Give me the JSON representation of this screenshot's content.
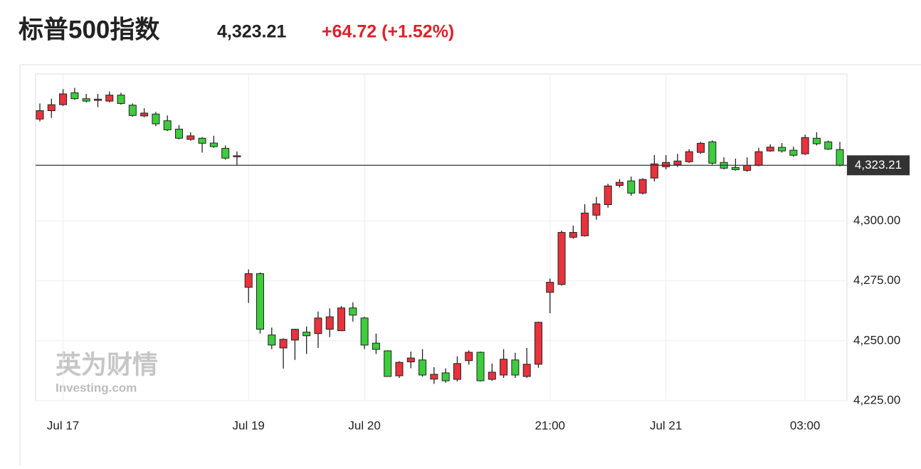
{
  "header": {
    "title": "标普500指数",
    "price": "4,323.21",
    "change": "+64.72 (+1.52%)"
  },
  "chart_data": {
    "type": "candlestick",
    "watermark": [
      "英为财情",
      "Investing.com"
    ],
    "up_color": "#e8323c",
    "down_color": "#3ccc3c",
    "categories": [
      null,
      null,
      "Jul 17",
      null,
      null,
      null,
      null,
      null,
      null,
      null,
      null,
      null,
      null,
      null,
      null,
      null,
      null,
      null,
      "Jul 19",
      null,
      null,
      null,
      null,
      null,
      null,
      null,
      null,
      null,
      "Jul 20",
      null,
      null,
      null,
      null,
      null,
      null,
      null,
      null,
      null,
      null,
      null,
      null,
      null,
      null,
      null,
      "21:00",
      null,
      null,
      null,
      null,
      null,
      null,
      null,
      null,
      null,
      "Jul 21",
      null,
      null,
      null,
      null,
      null,
      null,
      null,
      null,
      null,
      null,
      null,
      "03:00",
      null,
      null,
      null
    ],
    "open": [
      4342.5,
      4346,
      4348.5,
      4353.5,
      4351,
      4350.3,
      4350,
      4352.5,
      4348.3,
      4343.8,
      4344.6,
      4341.8,
      4338.3,
      4334,
      4334.5,
      4332.5,
      4330.3,
      4327,
      4272.3,
      4278,
      4252.4,
      4247,
      4250.3,
      4253.6,
      4253,
      4254.8,
      4254.2,
      4263.7,
      4259.5,
      4249,
      4245.8,
      4235.4,
      4241.2,
      4242,
      4234,
      4236.6,
      4233.9,
      4241.7,
      4245.2,
      4233.9,
      4235.7,
      4242,
      4235.1,
      4240.2,
      4270.2,
      4273.5,
      4293.2,
      4293.8,
      4302.4,
      4306.8,
      4314.8,
      4316.7,
      4311.6,
      4317.9,
      4322.6,
      4323.5,
      4324.7,
      4328.6,
      4333,
      4324.4,
      4322.3,
      4321.1,
      4323.2,
      4329.2,
      4330.7,
      4329.5,
      4328,
      4334.5,
      4333,
      4329.8
    ],
    "high": [
      4349,
      4351,
      4355,
      4355.5,
      4353,
      4353,
      4354,
      4353.5,
      4349,
      4347,
      4345.5,
      4344,
      4340,
      4337,
      4335,
      4335.5,
      4331.5,
      4329,
      4279.8,
      4278.5,
      4255.5,
      4251,
      4255,
      4256,
      4262.2,
      4263.5,
      4264.5,
      4266,
      4260,
      4253,
      4246,
      4241.5,
      4245.5,
      4246.5,
      4239,
      4238.5,
      4243.5,
      4246,
      4245.5,
      4240.5,
      4246.5,
      4245,
      4247,
      4258,
      4276,
      4296,
      4298,
      4307,
      4310,
      4315.5,
      4317.5,
      4318.5,
      4317.8,
      4327.5,
      4327.5,
      4328,
      4330,
      4333,
      4333.6,
      4326.5,
      4326,
      4326.5,
      4330.5,
      4332,
      4332.5,
      4331,
      4336,
      4337,
      4333.5,
      4333
    ],
    "low": [
      4341.5,
      4343,
      4348,
      4350.5,
      4349.5,
      4347.5,
      4349.5,
      4348.5,
      4343.5,
      4343.3,
      4339.5,
      4337.5,
      4334,
      4333.5,
      4328.5,
      4330.5,
      4325.5,
      4323.2,
      4265.8,
      4253,
      4246.5,
      4238.4,
      4242,
      4244.5,
      4247,
      4251.5,
      4254,
      4258,
      4246.5,
      4244.5,
      4235,
      4234.5,
      4238.5,
      4235,
      4232,
      4232.5,
      4233,
      4240,
      4233,
      4233.3,
      4234.5,
      4234.5,
      4234.5,
      4238.7,
      4261.5,
      4273,
      4292.5,
      4293.5,
      4300.5,
      4305.5,
      4314,
      4310.5,
      4311,
      4316.5,
      4321.5,
      4322.5,
      4324.2,
      4328,
      4323.5,
      4321.5,
      4321,
      4320.5,
      4322.8,
      4328.8,
      4328.5,
      4326.8,
      4327.5,
      4331.5,
      4329.6,
      4322.8
    ],
    "close": [
      4346,
      4348.5,
      4353,
      4351,
      4350,
      4350.8,
      4352.5,
      4349,
      4344,
      4345,
      4340.5,
      4338,
      4334.5,
      4335.5,
      4332.4,
      4331,
      4326.2,
      4327.2,
      4278,
      4254.8,
      4248.2,
      4250.6,
      4254.8,
      4252.1,
      4259.5,
      4260,
      4263.7,
      4260.7,
      4248.2,
      4246.4,
      4235.1,
      4241,
      4242.8,
      4235.7,
      4236,
      4233.3,
      4240.5,
      4245.2,
      4233.3,
      4236.9,
      4242.3,
      4235.7,
      4240.2,
      4257.7,
      4274.4,
      4295.2,
      4295.2,
      4303.3,
      4307.1,
      4314.6,
      4316.1,
      4311.6,
      4317.3,
      4323.8,
      4324.4,
      4325,
      4328.9,
      4332.4,
      4324.1,
      4322,
      4321.4,
      4323.2,
      4328.9,
      4330.8,
      4329.2,
      4327.4,
      4334.8,
      4332.2,
      4330,
      4323.21
    ],
    "last_price": {
      "value": 4323.21,
      "label": "4,323.21"
    },
    "ylim": [
      4225,
      4361.3
    ],
    "yticks": [
      {
        "value": 4225,
        "label": "4,225.00"
      },
      {
        "value": 4250,
        "label": "4,250.00"
      },
      {
        "value": 4275,
        "label": "4,275.00"
      },
      {
        "value": 4300,
        "label": "4,300.00"
      }
    ],
    "grid": true
  }
}
